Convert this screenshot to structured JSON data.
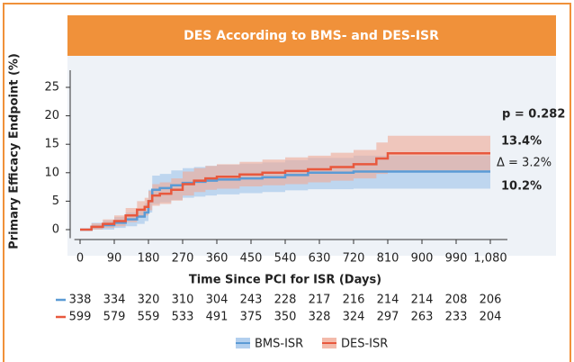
{
  "chart_data": {
    "type": "step",
    "title": "DES According to BMS- and DES-ISR",
    "x_label": "Time Since PCI for ISR (Days)",
    "y_label": "Primary Efficacy Endpoint (%)",
    "xlim": [
      -15,
      1125
    ],
    "ylim": [
      -1.5,
      28
    ],
    "xticks": [
      0,
      90,
      180,
      270,
      360,
      450,
      540,
      630,
      720,
      810,
      900,
      990,
      {
        "value": 1080,
        "label": "1,080"
      }
    ],
    "yticks": [
      0,
      5,
      10,
      15,
      20,
      25
    ],
    "x": [
      0,
      30,
      60,
      90,
      120,
      150,
      170,
      180,
      190,
      210,
      240,
      270,
      300,
      330,
      360,
      420,
      480,
      540,
      600,
      660,
      720,
      780,
      810,
      840,
      900,
      960,
      1020,
      1080
    ],
    "series": [
      {
        "name": "BMS-ISR",
        "color": "#5b9bd5",
        "band_color": "#9fc3ea",
        "values": [
          0,
          0.5,
          0.8,
          1.2,
          1.8,
          2.3,
          3,
          5,
          7,
          7.3,
          7.8,
          8.2,
          8.4,
          8.6,
          8.8,
          9,
          9.2,
          9.6,
          10,
          10,
          10.2,
          10.2,
          10.2,
          10.2,
          10.2,
          10.2,
          10.2,
          10.2
        ],
        "lower": [
          0,
          0,
          0,
          0.3,
          0.6,
          1,
          1.5,
          3,
          4.5,
          4.8,
          5.2,
          5.6,
          5.8,
          6,
          6.2,
          6.4,
          6.6,
          6.9,
          7.1,
          7.1,
          7.2,
          7.2,
          7.2,
          7.2,
          7.2,
          7.2,
          7.2,
          7.2
        ],
        "upper": [
          0,
          1.2,
          1.6,
          2.2,
          3,
          3.6,
          4.6,
          7,
          9.5,
          9.8,
          10.4,
          10.8,
          11,
          11.2,
          11.4,
          11.6,
          11.8,
          12.2,
          12.6,
          12.6,
          13,
          13,
          13,
          13,
          13,
          13,
          13,
          13
        ]
      },
      {
        "name": "DES-ISR",
        "color": "#e8583d",
        "band_color": "#f0a995",
        "values": [
          0,
          0.5,
          1,
          1.5,
          2.5,
          3.5,
          4,
          5,
          6,
          6.3,
          7,
          8,
          8.6,
          9,
          9.3,
          9.7,
          10,
          10.3,
          10.6,
          11,
          11.5,
          12.5,
          13.4,
          13.4,
          13.4,
          13.4,
          13.4,
          13.4
        ],
        "lower": [
          0,
          0,
          0.3,
          0.6,
          1.3,
          2.1,
          2.5,
          3.4,
          4.2,
          4.5,
          5.1,
          6,
          6.6,
          7,
          7.2,
          7.6,
          7.8,
          8,
          8.3,
          8.6,
          9,
          9.8,
          10.4,
          10.4,
          10.4,
          10.4,
          10.4,
          10.4
        ],
        "upper": [
          0,
          1.1,
          1.8,
          2.5,
          3.8,
          5,
          5.6,
          6.8,
          8,
          8.3,
          9,
          10.2,
          10.8,
          11.2,
          11.5,
          11.9,
          12.3,
          12.7,
          13,
          13.5,
          14,
          15.3,
          16.5,
          16.5,
          16.5,
          16.5,
          16.5,
          16.5
        ]
      }
    ],
    "annotations": [
      "p = 0.282",
      "13.4%",
      "Δ = 3.2%",
      "10.2%"
    ],
    "at_risk": [
      {
        "color": "#5b9bd5",
        "values": [
          338,
          334,
          320,
          310,
          304,
          243,
          228,
          217,
          216,
          214,
          214,
          208,
          206
        ]
      },
      {
        "color": "#e8583d",
        "values": [
          599,
          579,
          559,
          533,
          491,
          375,
          350,
          328,
          324,
          297,
          263,
          233,
          204
        ]
      }
    ]
  }
}
